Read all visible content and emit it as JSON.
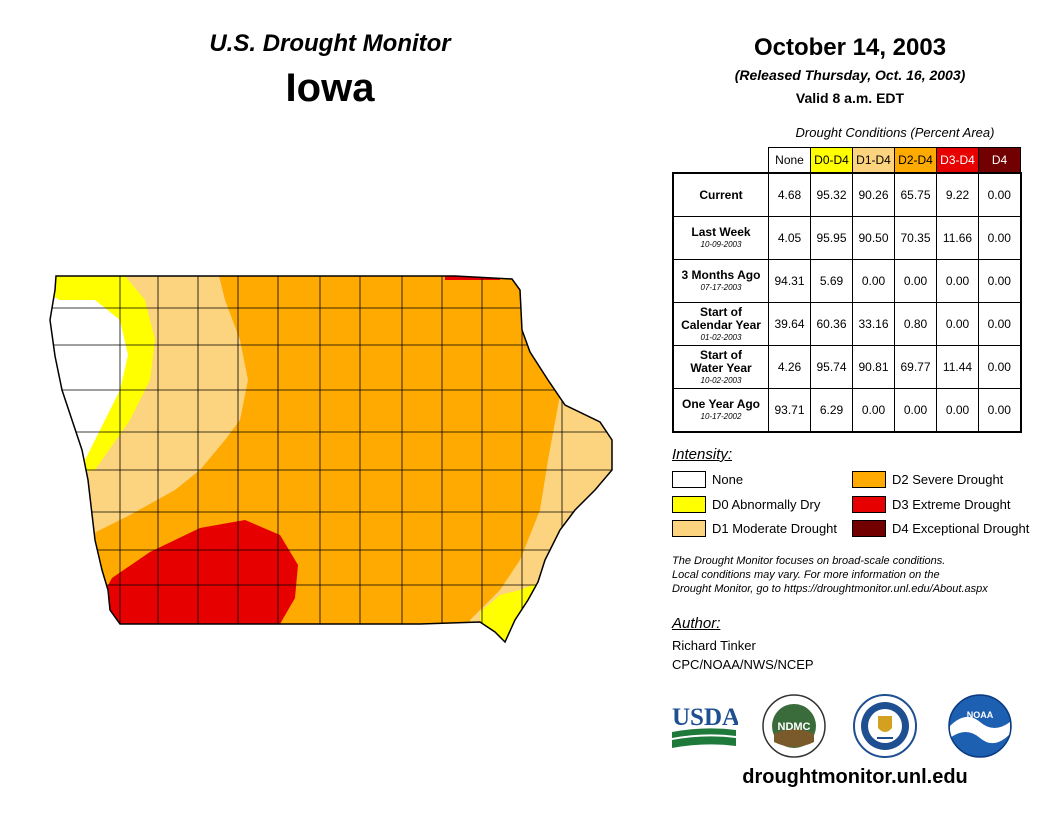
{
  "header": {
    "title": "U.S. Drought Monitor",
    "state": "Iowa",
    "date": "October 14, 2003",
    "released": "(Released Thursday, Oct. 16, 2003)",
    "valid": "Valid 8 a.m. EDT"
  },
  "table": {
    "caption": "Drought Conditions (Percent Area)",
    "columns": [
      {
        "label": "None",
        "bg": "#ffffff",
        "fg": "#000000"
      },
      {
        "label": "D0-D4",
        "bg": "#ffff00",
        "fg": "#000000"
      },
      {
        "label": "D1-D4",
        "bg": "#fcd37f",
        "fg": "#000000"
      },
      {
        "label": "D2-D4",
        "bg": "#ffaa00",
        "fg": "#000000"
      },
      {
        "label": "D3-D4",
        "bg": "#e60000",
        "fg": "#ffffff"
      },
      {
        "label": "D4",
        "bg": "#730000",
        "fg": "#ffffff"
      }
    ],
    "rows": [
      {
        "label": "Current",
        "label2": "",
        "date": "",
        "values": [
          "4.68",
          "95.32",
          "90.26",
          "65.75",
          "9.22",
          "0.00"
        ]
      },
      {
        "label": "Last Week",
        "label2": "",
        "date": "10-09-2003",
        "values": [
          "4.05",
          "95.95",
          "90.50",
          "70.35",
          "11.66",
          "0.00"
        ]
      },
      {
        "label": "3 Months Ago",
        "label2": "",
        "date": "07-17-2003",
        "values": [
          "94.31",
          "5.69",
          "0.00",
          "0.00",
          "0.00",
          "0.00"
        ]
      },
      {
        "label": "Start of",
        "label2": "Calendar Year",
        "date": "01-02-2003",
        "values": [
          "39.64",
          "60.36",
          "33.16",
          "0.80",
          "0.00",
          "0.00"
        ]
      },
      {
        "label": "Start of",
        "label2": "Water Year",
        "date": "10-02-2003",
        "values": [
          "4.26",
          "95.74",
          "90.81",
          "69.77",
          "11.44",
          "0.00"
        ]
      },
      {
        "label": "One Year Ago",
        "label2": "",
        "date": "10-17-2002",
        "values": [
          "93.71",
          "6.29",
          "0.00",
          "0.00",
          "0.00",
          "0.00"
        ]
      }
    ]
  },
  "legend": {
    "title": "Intensity:",
    "items": [
      {
        "label": "None",
        "color": "#ffffff"
      },
      {
        "label": "D0 Abnormally Dry",
        "color": "#ffff00"
      },
      {
        "label": "D1 Moderate Drought",
        "color": "#fcd37f"
      },
      {
        "label": "D2 Severe Drought",
        "color": "#ffaa00"
      },
      {
        "label": "D3 Extreme Drought",
        "color": "#e60000"
      },
      {
        "label": "D4 Exceptional Drought",
        "color": "#730000"
      }
    ]
  },
  "note": {
    "line1": "The Drought Monitor focuses on broad-scale conditions.",
    "line2": "Local conditions may vary. For more information on the",
    "line3": "Drought Monitor, go to https://droughtmonitor.unl.edu/About.aspx"
  },
  "author": {
    "title": "Author:",
    "name": "Richard Tinker",
    "org": "CPC/NOAA/NWS/NCEP"
  },
  "logos": {
    "usda": "USDA",
    "ndmc": "NDMC",
    "noaa": "NOAA"
  },
  "website": "droughtmonitor.unl.edu",
  "colors": {
    "none": "#ffffff",
    "d0": "#ffff00",
    "d1": "#fcd37f",
    "d2": "#ffaa00",
    "d3": "#e60000",
    "d4": "#730000"
  }
}
